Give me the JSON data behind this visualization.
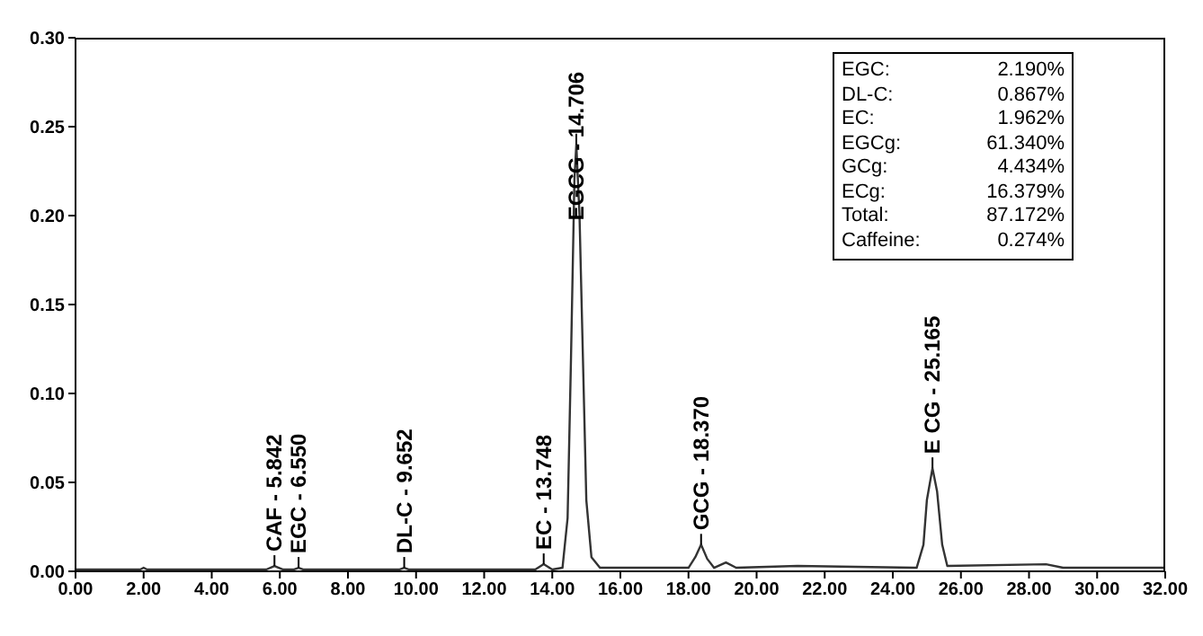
{
  "chart_data": {
    "type": "line",
    "x": [
      0,
      1.9,
      2.0,
      2.1,
      5.6,
      5.842,
      6.1,
      6.4,
      6.55,
      6.7,
      9.5,
      9.652,
      9.8,
      12,
      13.5,
      13.748,
      14.0,
      14.3,
      14.45,
      14.55,
      14.65,
      14.706,
      14.8,
      14.9,
      15.0,
      15.15,
      15.4,
      18.0,
      18.2,
      18.37,
      18.55,
      18.75,
      19.1,
      19.4,
      21.2,
      24.7,
      24.9,
      25.0,
      25.165,
      25.3,
      25.45,
      25.6,
      28.5,
      29,
      32
    ],
    "series": [
      {
        "color": "#333333",
        "values": [
          0.001,
          0.001,
          0.002,
          0.001,
          0.001,
          0.003,
          0.001,
          0.001,
          0.002,
          0.001,
          0.001,
          0.002,
          0.001,
          0.001,
          0.001,
          0.004,
          0.001,
          0.002,
          0.03,
          0.12,
          0.22,
          0.24,
          0.2,
          0.12,
          0.04,
          0.008,
          0.002,
          0.002,
          0.008,
          0.015,
          0.007,
          0.002,
          0.005,
          0.002,
          0.003,
          0.002,
          0.015,
          0.04,
          0.058,
          0.045,
          0.015,
          0.003,
          0.004,
          0.002,
          0.002
        ]
      }
    ],
    "xlim": [
      0,
      32
    ],
    "ylim": [
      0,
      0.3
    ],
    "xticks": [
      {
        "value": 0,
        "label": "0.00"
      },
      {
        "value": 2,
        "label": "2.00"
      },
      {
        "value": 4,
        "label": "4.00"
      },
      {
        "value": 6,
        "label": "6.00"
      },
      {
        "value": 8,
        "label": "8.00"
      },
      {
        "value": 10,
        "label": "10.00"
      },
      {
        "value": 12,
        "label": "12.00"
      },
      {
        "value": 14,
        "label": "14.00"
      },
      {
        "value": 16,
        "label": "16.00"
      },
      {
        "value": 18,
        "label": "18.00"
      },
      {
        "value": 20,
        "label": "20.00"
      },
      {
        "value": 22,
        "label": "22.00"
      },
      {
        "value": 24,
        "label": "24.00"
      },
      {
        "value": 26,
        "label": "26.00"
      },
      {
        "value": 28,
        "label": "28.00"
      },
      {
        "value": 30,
        "label": "30.00"
      },
      {
        "value": 32,
        "label": "32.00"
      }
    ],
    "yticks": [
      {
        "value": 0,
        "label": "0.00"
      },
      {
        "value": 0.05,
        "label": "0.05"
      },
      {
        "value": 0.1,
        "label": "0.10"
      },
      {
        "value": 0.15,
        "label": "0.15"
      },
      {
        "value": 0.2,
        "label": "0.20"
      },
      {
        "value": 0.25,
        "label": "0.25"
      },
      {
        "value": 0.3,
        "label": "0.30"
      }
    ],
    "grid": false,
    "legend": false,
    "marker": "none",
    "line_style": "solid",
    "annotations": [
      {
        "text": "CAF - 5.842",
        "x": 5.842,
        "y": 0.003
      },
      {
        "text": "EGC - 6.550",
        "x": 6.55,
        "y": 0.002
      },
      {
        "text": "DL-C - 9.652",
        "x": 9.652,
        "y": 0.002
      },
      {
        "text": "EC - 13.748",
        "x": 13.748,
        "y": 0.004
      },
      {
        "text": "EGCG - 14.706",
        "x": 14.706,
        "y": 0.24
      },
      {
        "text": "GCG - 18.370",
        "x": 18.37,
        "y": 0.015
      },
      {
        "text": "E CG - 25.165",
        "x": 25.165,
        "y": 0.058
      },
      "EGC: 2.190%",
      "DL-C: 0.867%",
      "EC: 1.962%",
      "EGCg: 61.340%",
      "GCg: 4.434%",
      "ECg: 16.379%",
      "Total: 87.172%",
      "Caffeine: 0.274%"
    ]
  }
}
